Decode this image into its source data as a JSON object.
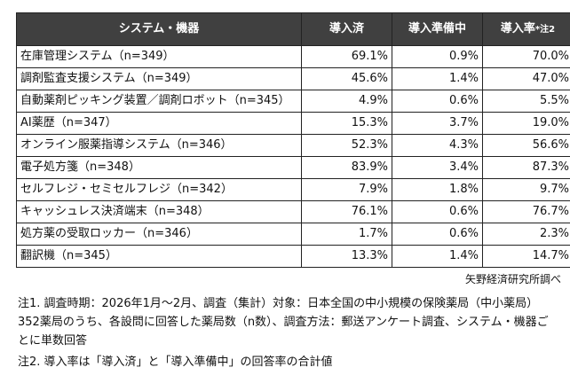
{
  "table": {
    "headers": [
      "システム・機器",
      "導入済",
      "導入準備中",
      "導入率",
      "*注2"
    ],
    "rows": [
      [
        "在庫管理システム（n=349）",
        "69.1%",
        "0.9%",
        "70.0%"
      ],
      [
        "調剤監査支援システム（n=349）",
        "45.6%",
        "1.4%",
        "47.0%"
      ],
      [
        "自動薬剤ピッキング装置／調剤ロボット（n=345）",
        "4.9%",
        "0.6%",
        "5.5%"
      ],
      [
        "AI薬歴（n=347）",
        "15.3%",
        "3.7%",
        "19.0%"
      ],
      [
        "オンライン服薬指導システム（n=346）",
        "52.3%",
        "4.3%",
        "56.6%"
      ],
      [
        "電子処方箋（n=348）",
        "83.9%",
        "3.4%",
        "87.3%"
      ],
      [
        "セルフレジ・セミセルフレジ（n=342）",
        "7.9%",
        "1.8%",
        "9.7%"
      ],
      [
        "キャッシュレス決済端末（n=348）",
        "76.1%",
        "0.6%",
        "76.7%"
      ],
      [
        "処方薬の受取ロッカー（n=346）",
        "1.7%",
        "0.6%",
        "2.3%"
      ],
      [
        "翻訳機（n=345）",
        "13.3%",
        "1.4%",
        "14.7%"
      ]
    ],
    "header_bg": "#404040"
  },
  "source": "矢野経済研究所調べ",
  "notes": [
    "注1. 調査時期：2026年1月～2月、調査（集計）対象：日本全国の中小規模の保険薬局（中小薬局）352薬局のうち、各設問に回答した薬局数（n数）、調査方法：郵送アンケート調査、システム・機器ごとに単数回答",
    "注2. 導入率は「導入済」と「導入準備中」の回答率の合計値"
  ]
}
